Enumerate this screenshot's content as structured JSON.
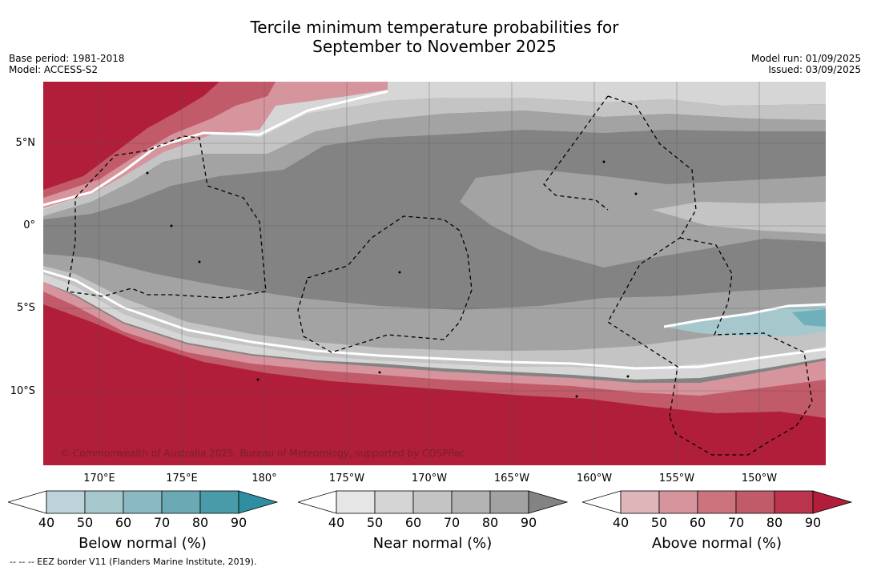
{
  "title": {
    "line1": "Tercile minimum temperature probabilities for",
    "line2": "September to November 2025"
  },
  "meta_left": {
    "base_period": "Base period: 1981-2018",
    "model": "Model: ACCESS-S2"
  },
  "meta_right": {
    "model_run": "Model run: 01/09/2025",
    "issued": "Issued: 03/09/2025"
  },
  "map": {
    "lat_labels": [
      "5°N",
      "0°",
      "5°S",
      "10°S"
    ],
    "lon_labels": [
      "170°E",
      "175°E",
      "180°",
      "175°W",
      "170°W",
      "165°W",
      "160°W",
      "155°W",
      "150°W"
    ],
    "copyright": "© Commonwealth of Australia 2025, Bureau of Meteorology, supported by COSPPac",
    "colors": {
      "above_dark": "#b01e3a",
      "near_dark": "#838383",
      "near_mid": "#a3a3a3",
      "near_light": "#c4c4c4",
      "near_pale": "#d6d6d6",
      "below_light": "#a6c8cd",
      "below_mid": "#6fb0bb"
    }
  },
  "colorbars": {
    "ticks": [
      "40",
      "50",
      "60",
      "70",
      "80",
      "90"
    ],
    "below": {
      "label": "Below normal (%)",
      "colors": [
        "#ffffff",
        "#bed3d9",
        "#a6c8cd",
        "#8ab9c1",
        "#6ba9b5",
        "#4a9ba9",
        "#2f8ea0"
      ]
    },
    "near": {
      "label": "Near normal (%)",
      "colors": [
        "#ffffff",
        "#e6e6e6",
        "#d5d5d5",
        "#c4c4c4",
        "#b3b3b3",
        "#a2a2a2",
        "#838383"
      ]
    },
    "above": {
      "label": "Above normal (%)",
      "colors": [
        "#ffffff",
        "#e0b5ba",
        "#d6949c",
        "#cc737e",
        "#c15a69",
        "#b9344c",
        "#b01e3a"
      ]
    }
  },
  "footnote": "-- -- -- EEZ border V11 (Flanders Marine Institute, 2019)."
}
